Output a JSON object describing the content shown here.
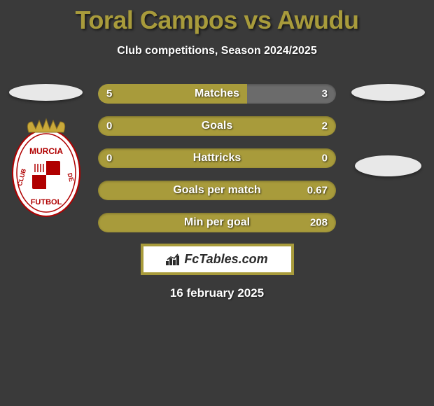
{
  "title": "Toral Campos vs Awudu",
  "subtitle": "Club competitions, Season 2024/2025",
  "date": "16 february 2025",
  "brand": "FcTables.com",
  "colors": {
    "accent": "#a89b3b",
    "bg": "#3a3a3a",
    "bar_bg": "#6b6b6b",
    "text": "#ffffff",
    "flag_left": "#e8e8e8",
    "flag_right": "#e8e8e8"
  },
  "left_crest": {
    "has_badge": true,
    "badge_text_top": "MURCIA",
    "badge_text_mid": "CLUB",
    "badge_text_bot": "FUTBOL",
    "badge_bg": "#ffffff",
    "badge_border": "#b00000",
    "crown": "#c9a93a"
  },
  "right_crest": {
    "has_badge": false
  },
  "stats": [
    {
      "label": "Matches",
      "left_val": "5",
      "right_val": "3",
      "left_pct": 62.5,
      "right_pct": 37.5,
      "left_color": "#a89b3b",
      "right_color": "#6b6b6b"
    },
    {
      "label": "Goals",
      "left_val": "0",
      "right_val": "2",
      "left_pct": 0,
      "right_pct": 100,
      "left_color": "#a89b3b",
      "right_color": "#6b6b6b"
    },
    {
      "label": "Hattricks",
      "left_val": "0",
      "right_val": "0",
      "left_pct": 0,
      "right_pct": 0,
      "left_color": "#a89b3b",
      "right_color": "#6b6b6b"
    },
    {
      "label": "Goals per match",
      "left_val": "",
      "right_val": "0.67",
      "left_pct": 0,
      "right_pct": 100,
      "left_color": "#a89b3b",
      "right_color": "#6b6b6b"
    },
    {
      "label": "Min per goal",
      "left_val": "",
      "right_val": "208",
      "left_pct": 0,
      "right_pct": 100,
      "left_color": "#a89b3b",
      "right_color": "#6b6b6b"
    }
  ]
}
